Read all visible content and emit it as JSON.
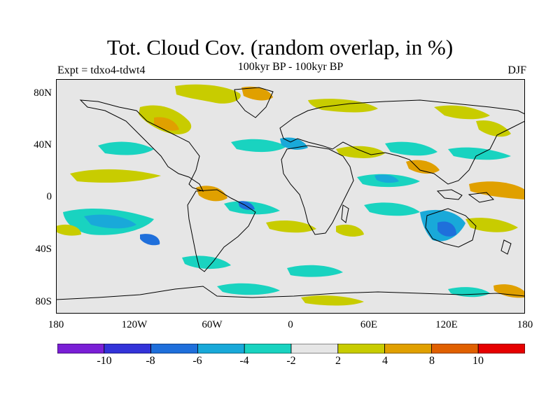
{
  "title": "Tot. Cloud Cov. (random overlap, in %)",
  "subtitle": "100kyr BP - 100kyr BP",
  "experiment": "Expt = tdxo4-tdwt4",
  "season": "DJF",
  "map": {
    "projection": "equirectangular",
    "lon_range": [
      -180,
      180
    ],
    "lat_range": [
      -90,
      90
    ],
    "background_color": "#e6e6e6",
    "coastline_color": "#000000",
    "x_ticks": [
      "180",
      "120W",
      "60W",
      "0",
      "60E",
      "120E",
      "180"
    ],
    "y_ticks": [
      "80N",
      "40N",
      "0",
      "40S",
      "80S"
    ]
  },
  "colorbar": {
    "colors": [
      "#7a1fd6",
      "#3333d9",
      "#1f6fdb",
      "#19a9d9",
      "#19d3c0",
      "#e6e6e6",
      "#c8cc00",
      "#e0a000",
      "#e06000",
      "#e60000"
    ],
    "tick_labels": [
      "-10",
      "-8",
      "-6",
      "-4",
      "-2",
      "2",
      "4",
      "8",
      "10"
    ]
  }
}
